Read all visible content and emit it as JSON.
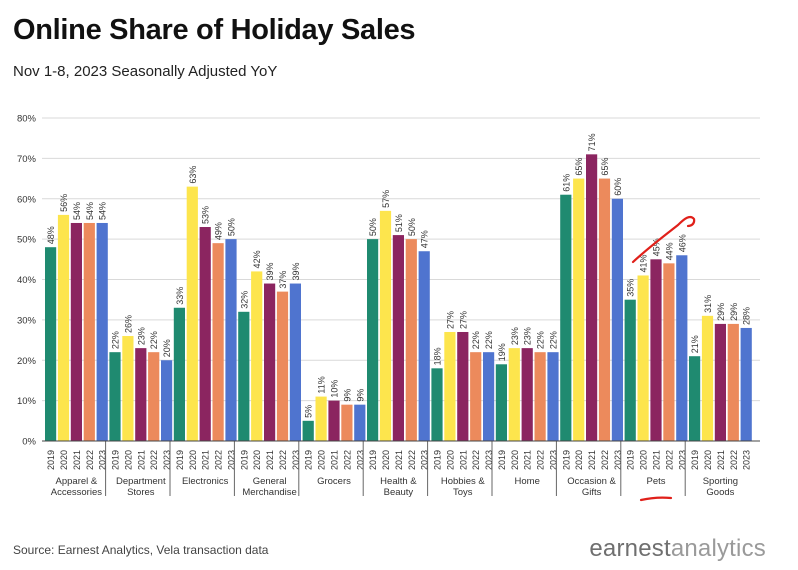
{
  "title": "Online Share of Holiday Sales",
  "subtitle": "Nov 1-8, 2023 Seasonally Adjusted YoY",
  "source": "Source: Earnest Analytics, Vela transaction data",
  "brand": {
    "part1": "earnest",
    "part2": "analytics"
  },
  "colors": {
    "2019": "#1f8a70",
    "2020": "#fde54d",
    "2021": "#8b2560",
    "2022": "#ec8a5c",
    "2023": "#4f74cf",
    "axis": "#444444",
    "grid": "#d9d9d9",
    "annotation": "#e0201a"
  },
  "chart_data": {
    "type": "bar",
    "ylim": [
      0,
      80
    ],
    "yticks": [
      "0%",
      "10%",
      "20%",
      "30%",
      "40%",
      "50%",
      "60%",
      "70%",
      "80%"
    ],
    "ytick_values": [
      0,
      10,
      20,
      30,
      40,
      50,
      60,
      70,
      80
    ],
    "years": [
      "2019",
      "2020",
      "2021",
      "2022",
      "2023"
    ],
    "groups": [
      {
        "label": [
          "Apparel &",
          "Accessories"
        ],
        "values": [
          48,
          56,
          54,
          54,
          54
        ],
        "labels": [
          "48%",
          "56%",
          "54%",
          "54%",
          "54%"
        ]
      },
      {
        "label": [
          "Department",
          "Stores"
        ],
        "values": [
          22,
          26,
          23,
          22,
          20
        ],
        "labels": [
          "22%",
          "26%",
          "23%",
          "22%",
          "20%"
        ]
      },
      {
        "label": [
          "Electronics"
        ],
        "values": [
          33,
          63,
          53,
          49,
          50
        ],
        "labels": [
          "33%",
          "63%",
          "53%",
          "49%",
          "50%"
        ]
      },
      {
        "label": [
          "General",
          "Merchandise"
        ],
        "values": [
          32,
          42,
          39,
          37,
          39
        ],
        "labels": [
          "32%",
          "42%",
          "39%",
          "37%",
          "39%"
        ]
      },
      {
        "label": [
          "Grocers"
        ],
        "values": [
          5,
          11,
          10,
          9,
          9
        ],
        "labels": [
          "5%",
          "11%",
          "10%",
          "9%",
          "9%"
        ]
      },
      {
        "label": [
          "Health &",
          "Beauty"
        ],
        "values": [
          50,
          57,
          51,
          50,
          47
        ],
        "labels": [
          "50%",
          "57%",
          "51%",
          "50%",
          "47%"
        ]
      },
      {
        "label": [
          "Hobbies &",
          "Toys"
        ],
        "values": [
          18,
          27,
          27,
          22,
          22
        ],
        "labels": [
          "18%",
          "27%",
          "27%",
          "22%",
          "22%"
        ]
      },
      {
        "label": [
          "Home"
        ],
        "values": [
          19,
          23,
          23,
          22,
          22
        ],
        "labels": [
          "19%",
          "23%",
          "23%",
          "22%",
          "22%"
        ]
      },
      {
        "label": [
          "Occasion &",
          "Gifts"
        ],
        "values": [
          61,
          65,
          71,
          65,
          60
        ],
        "labels": [
          "61%",
          "65%",
          "71%",
          "65%",
          "60%"
        ]
      },
      {
        "label": [
          "Pets"
        ],
        "values": [
          35,
          41,
          45,
          44,
          46
        ],
        "labels": [
          "35%",
          "41%",
          "45%",
          "44%",
          "46%"
        ]
      },
      {
        "label": [
          "Sporting",
          "Goods"
        ],
        "values": [
          21,
          31,
          29,
          29,
          28
        ],
        "labels": [
          "21%",
          "31%",
          "29%",
          "29%",
          "28%"
        ]
      }
    ],
    "grid": true,
    "legend": "none"
  }
}
